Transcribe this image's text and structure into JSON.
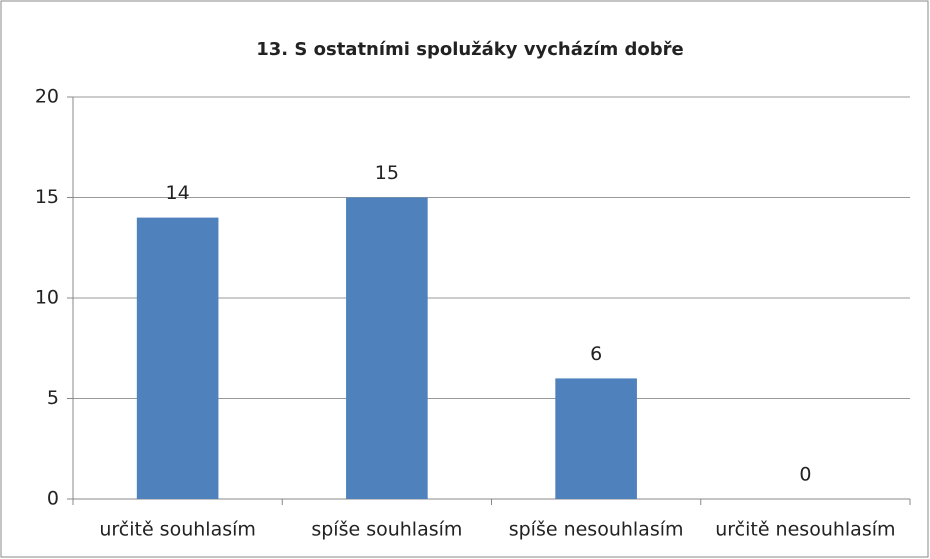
{
  "chart_data": {
    "type": "bar",
    "title": "13.  S ostatními spolužáky vycházím dobře",
    "categories": [
      "určitě souhlasím",
      "spíše souhlasím",
      "spíše nesouhlasím",
      "určitě nesouhlasím"
    ],
    "values": [
      14,
      15,
      6,
      0
    ],
    "color": "#4f81bd",
    "ylim": [
      0,
      20
    ],
    "yticks": [
      0,
      5,
      10,
      15,
      20
    ],
    "grid": true
  }
}
